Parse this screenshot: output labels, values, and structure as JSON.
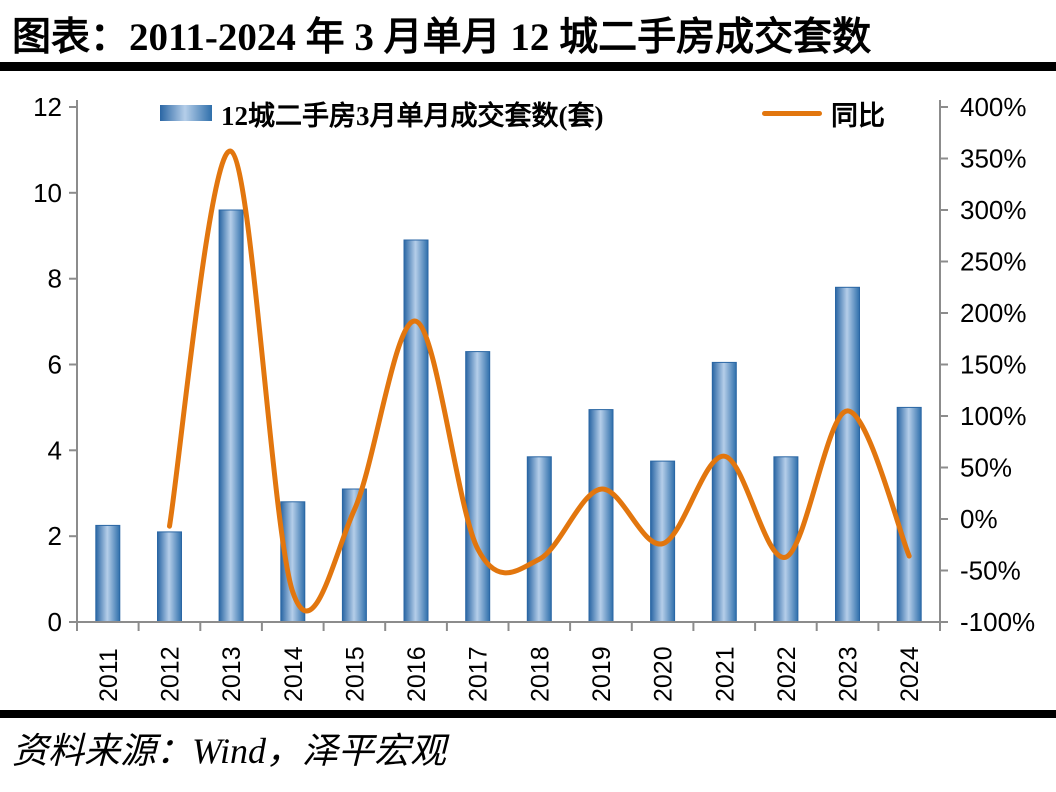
{
  "title": "图表：2011-2024 年 3 月单月 12 城二手房成交套数",
  "source": "资料来源：Wind，泽平宏观",
  "legend": {
    "bars_label": "12城二手房3月单月成交套数(套)",
    "line_label": "同比"
  },
  "colors": {
    "bar_edge": "#2A66A4",
    "bar_light": "#B5CEE9",
    "bar_edge_right": "#2F6FAB",
    "line": "#E2760E",
    "axis": "#8C8C8C",
    "text": "#000000",
    "rule": "#000000"
  },
  "chart_data": {
    "type": "bar",
    "title": "图表：2011-2024 年 3 月单月 12 城二手房成交套数",
    "categories": [
      "2011",
      "2012",
      "2013",
      "2014",
      "2015",
      "2016",
      "2017",
      "2018",
      "2019",
      "2020",
      "2021",
      "2022",
      "2023",
      "2024"
    ],
    "series": [
      {
        "name": "12城二手房3月单月成交套数(套)",
        "type": "bar",
        "axis": "left",
        "values": [
          2.25,
          2.1,
          9.6,
          2.8,
          3.1,
          8.9,
          6.3,
          3.85,
          4.95,
          3.75,
          6.05,
          3.85,
          7.8,
          5.0
        ]
      },
      {
        "name": "同比",
        "type": "line",
        "axis": "right",
        "unit": "%",
        "values": [
          null,
          -7,
          357,
          -71,
          9,
          192,
          -29,
          -39,
          29,
          -24,
          61,
          -37,
          105,
          -36
        ]
      }
    ],
    "left_axis": {
      "min": 0,
      "max": 12,
      "step": 2,
      "ticks": [
        {
          "v": 0,
          "label": "0"
        },
        {
          "v": 2,
          "label": "2"
        },
        {
          "v": 4,
          "label": "4"
        },
        {
          "v": 6,
          "label": "6"
        },
        {
          "v": 8,
          "label": "8"
        },
        {
          "v": 10,
          "label": "10"
        },
        {
          "v": 12,
          "label": "12"
        }
      ]
    },
    "right_axis": {
      "min": -100,
      "max": 400,
      "step": 50,
      "ticks": [
        {
          "v": -100,
          "label": "-100%"
        },
        {
          "v": -50,
          "label": "-50%"
        },
        {
          "v": 0,
          "label": "0%"
        },
        {
          "v": 50,
          "label": "50%"
        },
        {
          "v": 100,
          "label": "100%"
        },
        {
          "v": 150,
          "label": "150%"
        },
        {
          "v": 200,
          "label": "200%"
        },
        {
          "v": 250,
          "label": "250%"
        },
        {
          "v": 300,
          "label": "300%"
        },
        {
          "v": 350,
          "label": "350%"
        },
        {
          "v": 400,
          "label": "400%"
        }
      ]
    },
    "grid": false,
    "legend_position": "top"
  }
}
